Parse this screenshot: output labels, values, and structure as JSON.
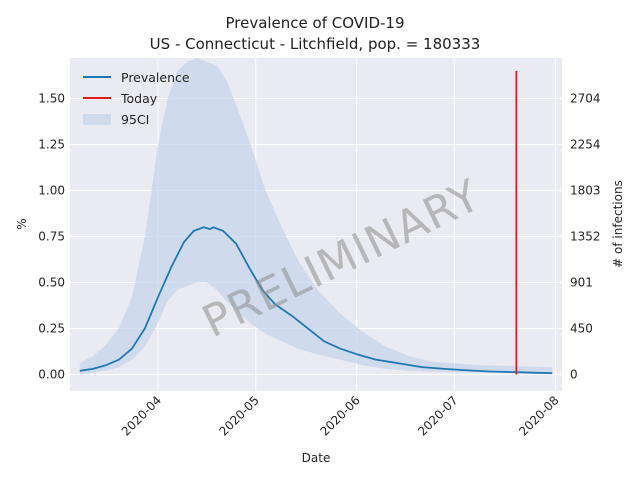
{
  "chart_data": {
    "type": "line",
    "title": "Prevalence of COVID-19",
    "subtitle": "US - Connecticut - Litchfield, pop. = 180333",
    "xlabel": "Date",
    "ylabel": "%",
    "ylabel_right": "# of infections",
    "watermark": "PRELIMINARY",
    "grid": true,
    "legend_position": "top-left",
    "xlim": [
      "2020-03-05",
      "2020-08-03"
    ],
    "ylim": [
      -0.09,
      1.72
    ],
    "x_ticks": [
      "2020-04-01",
      "2020-05-01",
      "2020-06-01",
      "2020-07-01",
      "2020-08-01"
    ],
    "x_tick_labels": [
      "2020-04",
      "2020-05",
      "2020-06",
      "2020-07",
      "2020-08"
    ],
    "y_ticks": [
      0.0,
      0.25,
      0.5,
      0.75,
      1.0,
      1.25,
      1.5
    ],
    "y_tick_labels": [
      "0.00",
      "0.25",
      "0.50",
      "0.75",
      "1.00",
      "1.25",
      "1.50"
    ],
    "y2_ticks": [
      0,
      450,
      901,
      1352,
      1803,
      2254,
      2704
    ],
    "y2_tick_labels": [
      "0",
      "450",
      "901",
      "1352",
      "1803",
      "2254",
      "2704"
    ],
    "population": 180333,
    "colors": {
      "prevalence": "#1f77b4",
      "today": "#e31a1c",
      "ci": "#c5d6ea"
    },
    "legend": [
      "Prevalence",
      "Today",
      "95CI"
    ],
    "today": {
      "date": "2020-07-20",
      "y_min": 0.0,
      "y_max": 1.65
    },
    "series": [
      {
        "name": "Prevalence",
        "x": [
          "2020-03-08",
          "2020-03-12",
          "2020-03-16",
          "2020-03-20",
          "2020-03-24",
          "2020-03-28",
          "2020-04-01",
          "2020-04-05",
          "2020-04-09",
          "2020-04-12",
          "2020-04-15",
          "2020-04-17",
          "2020-04-18",
          "2020-04-21",
          "2020-04-25",
          "2020-04-29",
          "2020-05-03",
          "2020-05-07",
          "2020-05-12",
          "2020-05-17",
          "2020-05-22",
          "2020-05-27",
          "2020-06-01",
          "2020-06-07",
          "2020-06-14",
          "2020-06-21",
          "2020-06-28",
          "2020-07-05",
          "2020-07-12",
          "2020-07-20",
          "2020-07-26",
          "2020-07-31"
        ],
        "y": [
          0.02,
          0.03,
          0.05,
          0.08,
          0.14,
          0.25,
          0.42,
          0.58,
          0.72,
          0.78,
          0.8,
          0.79,
          0.8,
          0.78,
          0.71,
          0.58,
          0.46,
          0.38,
          0.32,
          0.25,
          0.18,
          0.14,
          0.11,
          0.08,
          0.06,
          0.04,
          0.03,
          0.022,
          0.016,
          0.012,
          0.009,
          0.007
        ]
      },
      {
        "name": "95CI",
        "x": [
          "2020-03-08",
          "2020-03-12",
          "2020-03-16",
          "2020-03-20",
          "2020-03-24",
          "2020-03-28",
          "2020-04-01",
          "2020-04-04",
          "2020-04-07",
          "2020-04-10",
          "2020-04-13",
          "2020-04-16",
          "2020-04-19",
          "2020-04-22",
          "2020-04-26",
          "2020-04-30",
          "2020-05-04",
          "2020-05-09",
          "2020-05-14",
          "2020-05-20",
          "2020-05-27",
          "2020-06-03",
          "2020-06-10",
          "2020-06-17",
          "2020-06-24",
          "2020-07-01",
          "2020-07-10",
          "2020-07-20",
          "2020-07-31"
        ],
        "upper": [
          0.06,
          0.1,
          0.16,
          0.25,
          0.42,
          0.75,
          1.25,
          1.5,
          1.65,
          1.7,
          1.72,
          1.7,
          1.68,
          1.6,
          1.42,
          1.22,
          1.0,
          0.8,
          0.62,
          0.46,
          0.33,
          0.23,
          0.15,
          0.1,
          0.07,
          0.06,
          0.05,
          0.045,
          0.04
        ],
        "lower": [
          0.0,
          0.01,
          0.02,
          0.04,
          0.08,
          0.15,
          0.28,
          0.4,
          0.46,
          0.48,
          0.5,
          0.5,
          0.46,
          0.4,
          0.33,
          0.27,
          0.22,
          0.18,
          0.14,
          0.11,
          0.08,
          0.05,
          0.03,
          0.02,
          0.015,
          0.012,
          0.01,
          0.008,
          0.006
        ]
      }
    ]
  }
}
